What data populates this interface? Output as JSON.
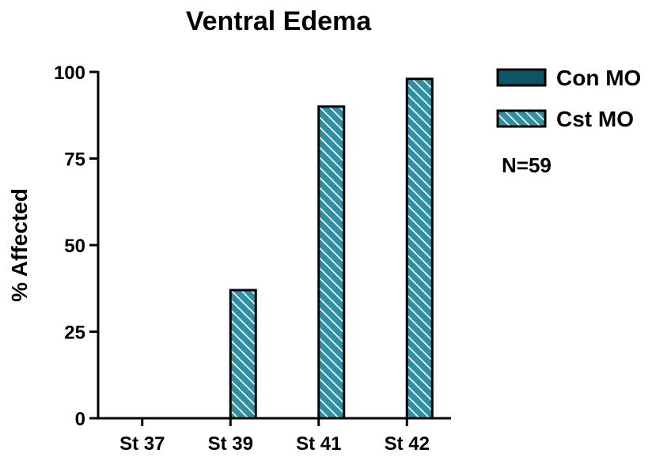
{
  "chart_data": {
    "type": "bar",
    "title": "Ventral Edema",
    "xlabel": "",
    "ylabel": "% Affected",
    "categories": [
      "St 37",
      "St 39",
      "St 41",
      "St 42"
    ],
    "series": [
      {
        "name": "Con MO",
        "values": [
          0,
          0,
          0,
          0
        ],
        "color": "#0e5566",
        "pattern": "solid"
      },
      {
        "name": "Cst MO",
        "values": [
          0,
          37,
          90,
          98
        ],
        "color": "#2f8fa5",
        "pattern": "hatched"
      }
    ],
    "ylim": [
      0,
      100
    ],
    "yticks": [
      0,
      25,
      50,
      75,
      100
    ],
    "grid": false,
    "legend": "top-right",
    "annotation": "N=59"
  }
}
